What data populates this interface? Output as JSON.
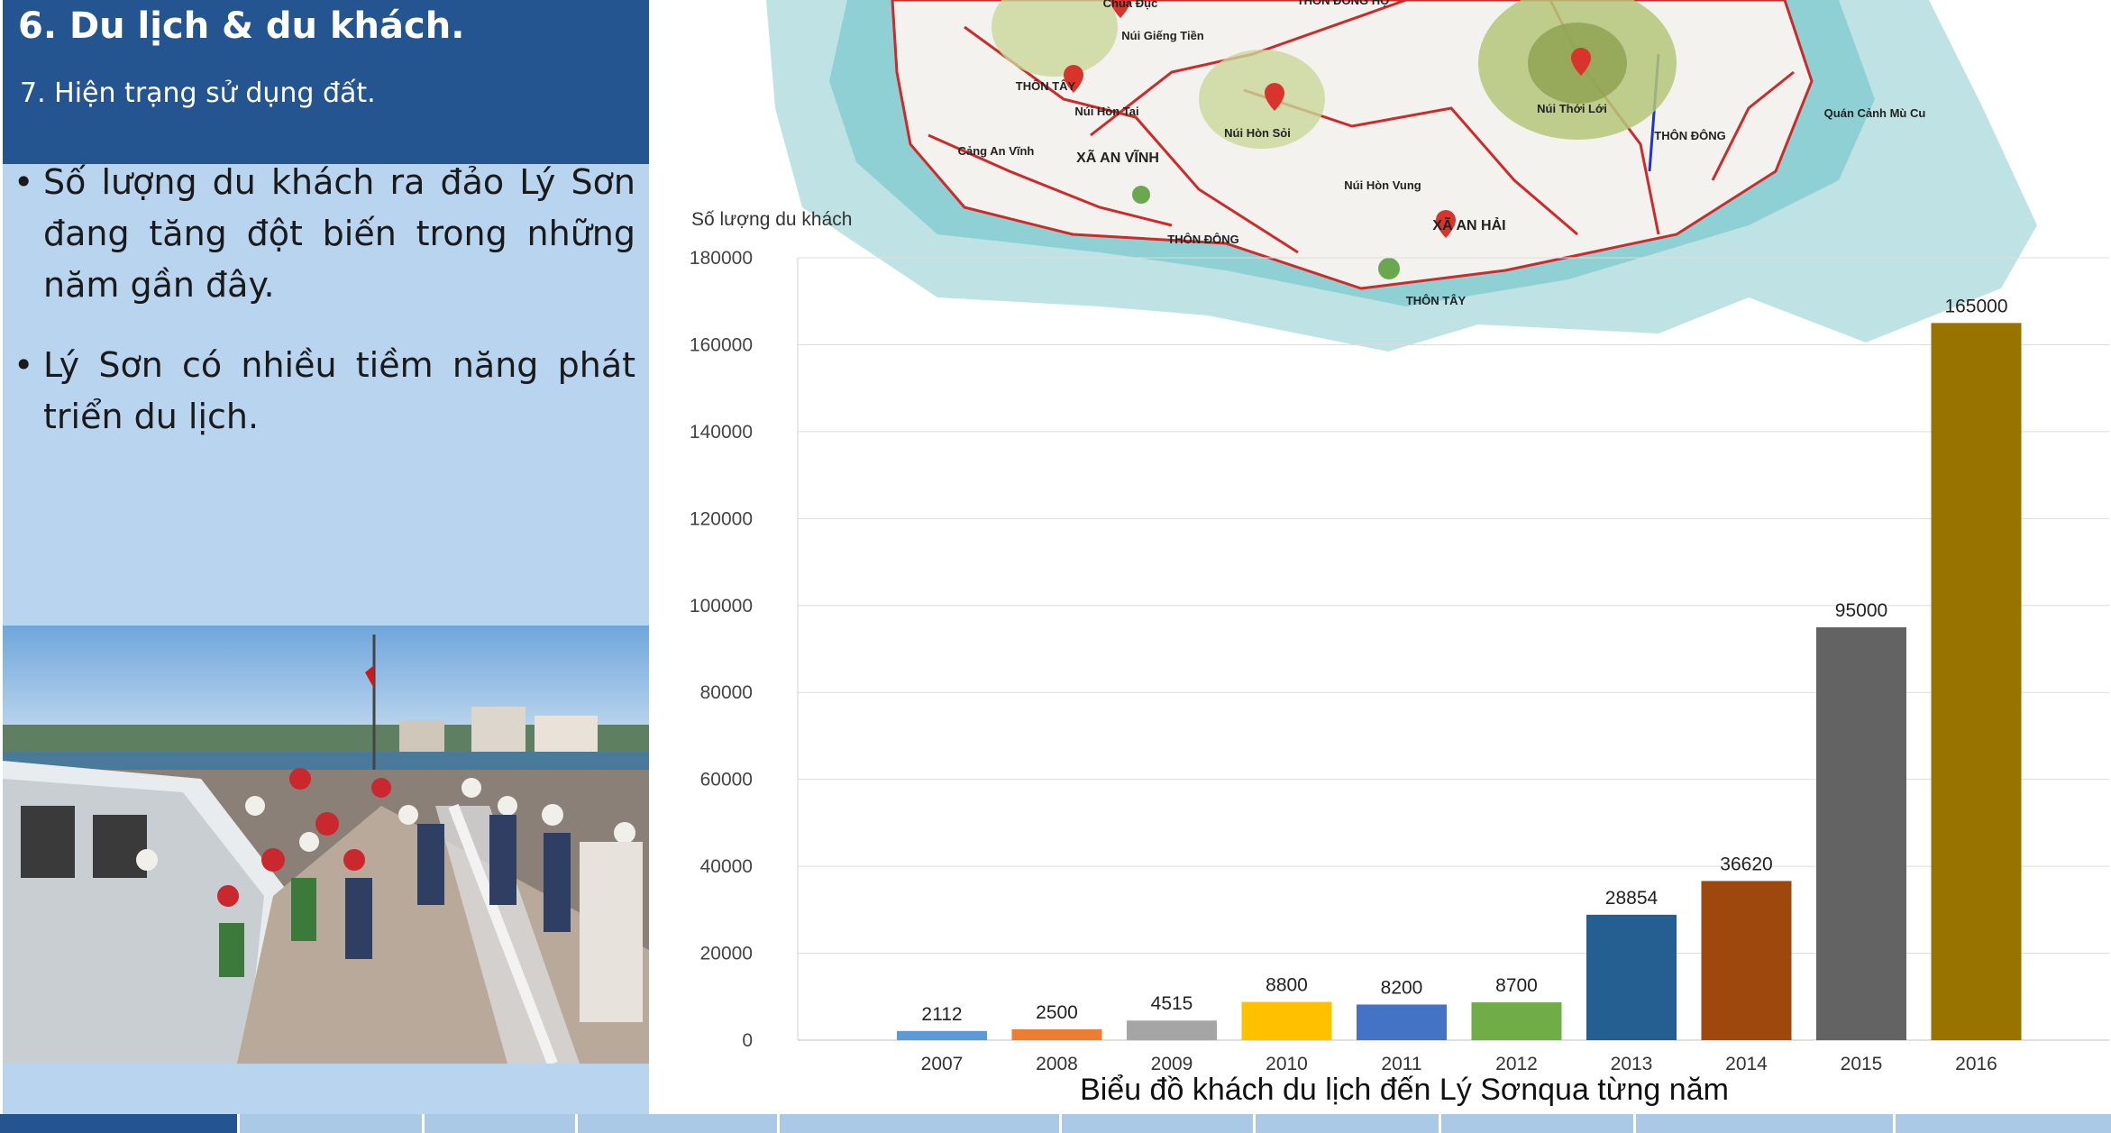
{
  "header": {
    "title": "6. Du lịch & du khách.",
    "subtitle": "7.  Hiện trạng sử dụng đất."
  },
  "bullets": [
    "Số lượng du khách ra đảo Lý Sơn đang tăng đột biến trong những năm gần đây.",
    "Lý Sơn có nhiều tiềm năng phát triển du lịch."
  ],
  "bullet_symbol": "•",
  "map_labels": [
    "Chùa Đục",
    "Núi Giếng Tiền",
    "THÔN ĐÔNG HỘ",
    "THÔN TÂY",
    "Núi Hòn Tai",
    "XÃ AN VĨNH",
    "Núi Hòn Sỏi",
    "Cảng An Vĩnh",
    "Núi Thới Lới",
    "THÔN ĐÔNG",
    "Quán Cảnh Mù Cu",
    "Núi Hòn Vung",
    "XÃ AN HẢI",
    "THÔN ĐÔNG",
    "THÔN TÂY"
  ],
  "colors": {
    "header_bg": "#245590",
    "panel_bg": "#b8d4ee",
    "tab_active": "#245590",
    "tab": "#a9c9e6"
  },
  "chart_data": {
    "type": "bar",
    "title": "Biểu đồ khách du lịch đến Lý Sơnqua từng năm",
    "ylabel": "Số lượng du khách",
    "xlabel": "",
    "ylim": [
      0,
      180000
    ],
    "yticks": [
      "0",
      "20000",
      "40000",
      "60000",
      "80000",
      "100000",
      "120000",
      "140000",
      "160000",
      "180000"
    ],
    "categories": [
      "2007",
      "2008",
      "2009",
      "2010",
      "2011",
      "2012",
      "2013",
      "2014",
      "2015",
      "2016"
    ],
    "values": [
      2112,
      2500,
      4515,
      8800,
      8200,
      8700,
      28854,
      36620,
      95000,
      165000
    ],
    "data_labels": [
      "2112",
      "2500",
      "4515",
      "8800",
      "8200",
      "8700",
      "28854",
      "36620",
      "95000",
      "165000"
    ],
    "bar_colors": [
      "#5b9bd5",
      "#ed7d31",
      "#a5a5a5",
      "#ffc000",
      "#4472c4",
      "#70ad47",
      "#255e91",
      "#9e480e",
      "#636363",
      "#997300"
    ],
    "grid": true,
    "legend": "none"
  }
}
